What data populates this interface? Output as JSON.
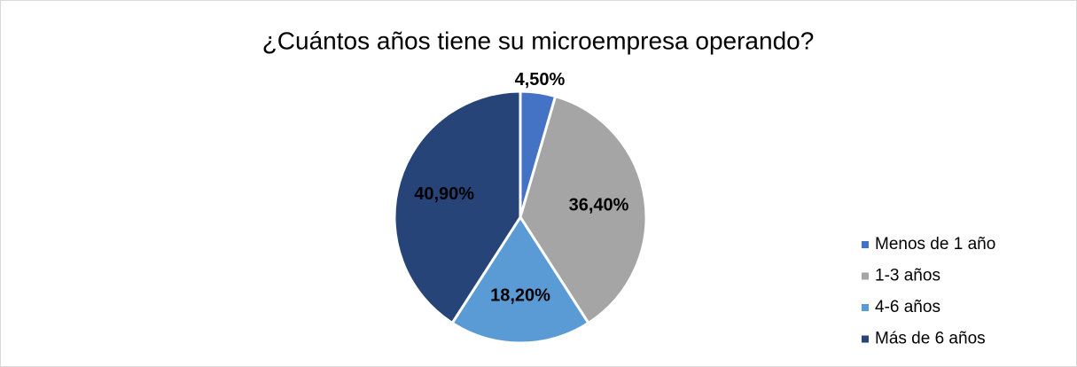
{
  "chart_data": {
    "type": "pie",
    "title": "¿Cuántos años tiene su microempresa operando?",
    "categories": [
      "Menos de 1 año",
      "1-3 años",
      "4-6 años",
      "Más de 6 años"
    ],
    "values": [
      4.5,
      36.4,
      18.2,
      40.9
    ],
    "value_labels": [
      "4,50%",
      "36,40%",
      "18,20%",
      "40,90%"
    ],
    "colors": [
      "#4472c4",
      "#a5a5a5",
      "#5b9bd5",
      "#264478"
    ],
    "legend": "right"
  }
}
